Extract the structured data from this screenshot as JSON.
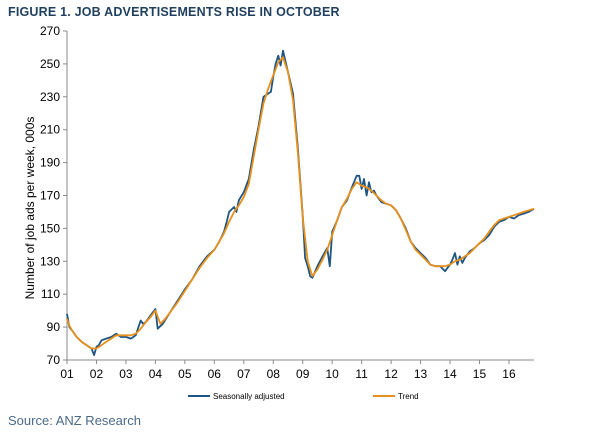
{
  "figure": {
    "title": "FIGURE 1. JOB ADVERTISEMENTS RISE IN OCTOBER",
    "source": "Source: ANZ Research"
  },
  "chart_data": {
    "type": "line",
    "title": "FIGURE 1. JOB ADVERTISEMENTS RISE IN OCTOBER",
    "xlabel": "",
    "ylabel": "Number of job ads per week, 000s",
    "x_tick_labels": [
      "01",
      "02",
      "03",
      "04",
      "05",
      "06",
      "07",
      "08",
      "09",
      "10",
      "11",
      "12",
      "13",
      "14",
      "15",
      "16"
    ],
    "x_ticks": [
      2001,
      2002,
      2003,
      2004,
      2005,
      2006,
      2007,
      2008,
      2009,
      2010,
      2011,
      2012,
      2013,
      2014,
      2015,
      2016
    ],
    "xlim": [
      2001.0,
      2016.85
    ],
    "ylim": [
      70,
      270
    ],
    "y_ticks": [
      70,
      90,
      110,
      130,
      150,
      170,
      190,
      210,
      230,
      250,
      270
    ],
    "grid": false,
    "legend": "bottom",
    "series": [
      {
        "name": "Seasonally adjusted",
        "color": "#1f5582",
        "x": [
          2001.0,
          2001.08,
          2001.17,
          2001.33,
          2001.5,
          2001.67,
          2001.83,
          2001.92,
          2002.0,
          2002.08,
          2002.17,
          2002.33,
          2002.5,
          2002.67,
          2002.83,
          2003.0,
          2003.17,
          2003.33,
          2003.5,
          2003.58,
          2003.67,
          2003.83,
          2004.0,
          2004.08,
          2004.25,
          2004.5,
          2004.75,
          2005.0,
          2005.25,
          2005.5,
          2005.75,
          2006.0,
          2006.17,
          2006.33,
          2006.42,
          2006.5,
          2006.67,
          2006.75,
          2006.83,
          2007.0,
          2007.17,
          2007.33,
          2007.5,
          2007.67,
          2007.83,
          2007.92,
          2008.0,
          2008.08,
          2008.17,
          2008.25,
          2008.33,
          2008.5,
          2008.67,
          2008.83,
          2009.0,
          2009.08,
          2009.17,
          2009.25,
          2009.33,
          2009.5,
          2009.67,
          2009.83,
          2009.92,
          2010.0,
          2010.17,
          2010.33,
          2010.5,
          2010.67,
          2010.83,
          2010.92,
          2011.0,
          2011.08,
          2011.17,
          2011.25,
          2011.33,
          2011.42,
          2011.5,
          2011.67,
          2011.83,
          2012.0,
          2012.17,
          2012.33,
          2012.5,
          2012.67,
          2012.83,
          2013.0,
          2013.17,
          2013.33,
          2013.5,
          2013.67,
          2013.83,
          2014.0,
          2014.08,
          2014.17,
          2014.25,
          2014.33,
          2014.42,
          2014.5,
          2014.67,
          2014.83,
          2015.0,
          2015.17,
          2015.33,
          2015.5,
          2015.67,
          2015.83,
          2016.0,
          2016.17,
          2016.33,
          2016.5,
          2016.67,
          2016.85
        ],
        "y": [
          98,
          90,
          88,
          84,
          81,
          79,
          77,
          73,
          78,
          79,
          82,
          83,
          84,
          86,
          84,
          84,
          83,
          85,
          94,
          92,
          93,
          97,
          101,
          89,
          92,
          99,
          106,
          113,
          119,
          127,
          133,
          137,
          142,
          148,
          154,
          160,
          163,
          160,
          167,
          172,
          180,
          197,
          212,
          230,
          232,
          233,
          242,
          250,
          255,
          249,
          258,
          245,
          232,
          200,
          158,
          132,
          127,
          121,
          120,
          127,
          133,
          138,
          127,
          148,
          155,
          163,
          167,
          175,
          182,
          182,
          174,
          180,
          170,
          178,
          172,
          173,
          170,
          166,
          165,
          164,
          161,
          156,
          150,
          142,
          138,
          135,
          132,
          128,
          127,
          127,
          124,
          128,
          131,
          135,
          128,
          133,
          129,
          132,
          136,
          138,
          141,
          143,
          146,
          151,
          154,
          155,
          157,
          156,
          158,
          159,
          160,
          162
        ]
      },
      {
        "name": "Trend",
        "color": "#e8901a",
        "x": [
          2001.0,
          2001.08,
          2001.17,
          2001.33,
          2001.5,
          2001.67,
          2001.83,
          2002.0,
          2002.17,
          2002.33,
          2002.5,
          2002.67,
          2002.83,
          2003.0,
          2003.17,
          2003.33,
          2003.5,
          2003.67,
          2003.83,
          2004.0,
          2004.17,
          2004.33,
          2004.5,
          2004.75,
          2005.0,
          2005.25,
          2005.5,
          2005.75,
          2006.0,
          2006.17,
          2006.33,
          2006.5,
          2006.67,
          2006.83,
          2007.0,
          2007.17,
          2007.33,
          2007.5,
          2007.67,
          2007.83,
          2008.0,
          2008.17,
          2008.33,
          2008.5,
          2008.67,
          2008.83,
          2009.0,
          2009.17,
          2009.33,
          2009.5,
          2009.67,
          2009.83,
          2010.0,
          2010.17,
          2010.33,
          2010.5,
          2010.67,
          2010.83,
          2011.0,
          2011.17,
          2011.33,
          2011.5,
          2011.67,
          2011.83,
          2012.0,
          2012.17,
          2012.33,
          2012.5,
          2012.67,
          2012.83,
          2013.0,
          2013.17,
          2013.33,
          2013.5,
          2013.67,
          2013.83,
          2014.0,
          2014.17,
          2014.33,
          2014.5,
          2014.67,
          2014.83,
          2015.0,
          2015.17,
          2015.33,
          2015.5,
          2015.67,
          2015.83,
          2016.0,
          2016.17,
          2016.33,
          2016.5,
          2016.67,
          2016.85
        ],
        "y": [
          95,
          91,
          88,
          84,
          81,
          79,
          77,
          77,
          79,
          81,
          83,
          85,
          85,
          85,
          85,
          86,
          89,
          93,
          96,
          100,
          92,
          95,
          99,
          105,
          112,
          119,
          126,
          132,
          137,
          142,
          147,
          154,
          160,
          164,
          169,
          177,
          193,
          210,
          226,
          235,
          243,
          251,
          254,
          245,
          228,
          197,
          157,
          130,
          121,
          125,
          131,
          137,
          146,
          155,
          163,
          168,
          174,
          178,
          176,
          175,
          173,
          170,
          167,
          165,
          164,
          161,
          156,
          149,
          142,
          137,
          134,
          131,
          128,
          127,
          127,
          127,
          128,
          130,
          131,
          133,
          135,
          138,
          141,
          144,
          148,
          152,
          155,
          156,
          157,
          158,
          159,
          160,
          161,
          162
        ]
      }
    ]
  }
}
